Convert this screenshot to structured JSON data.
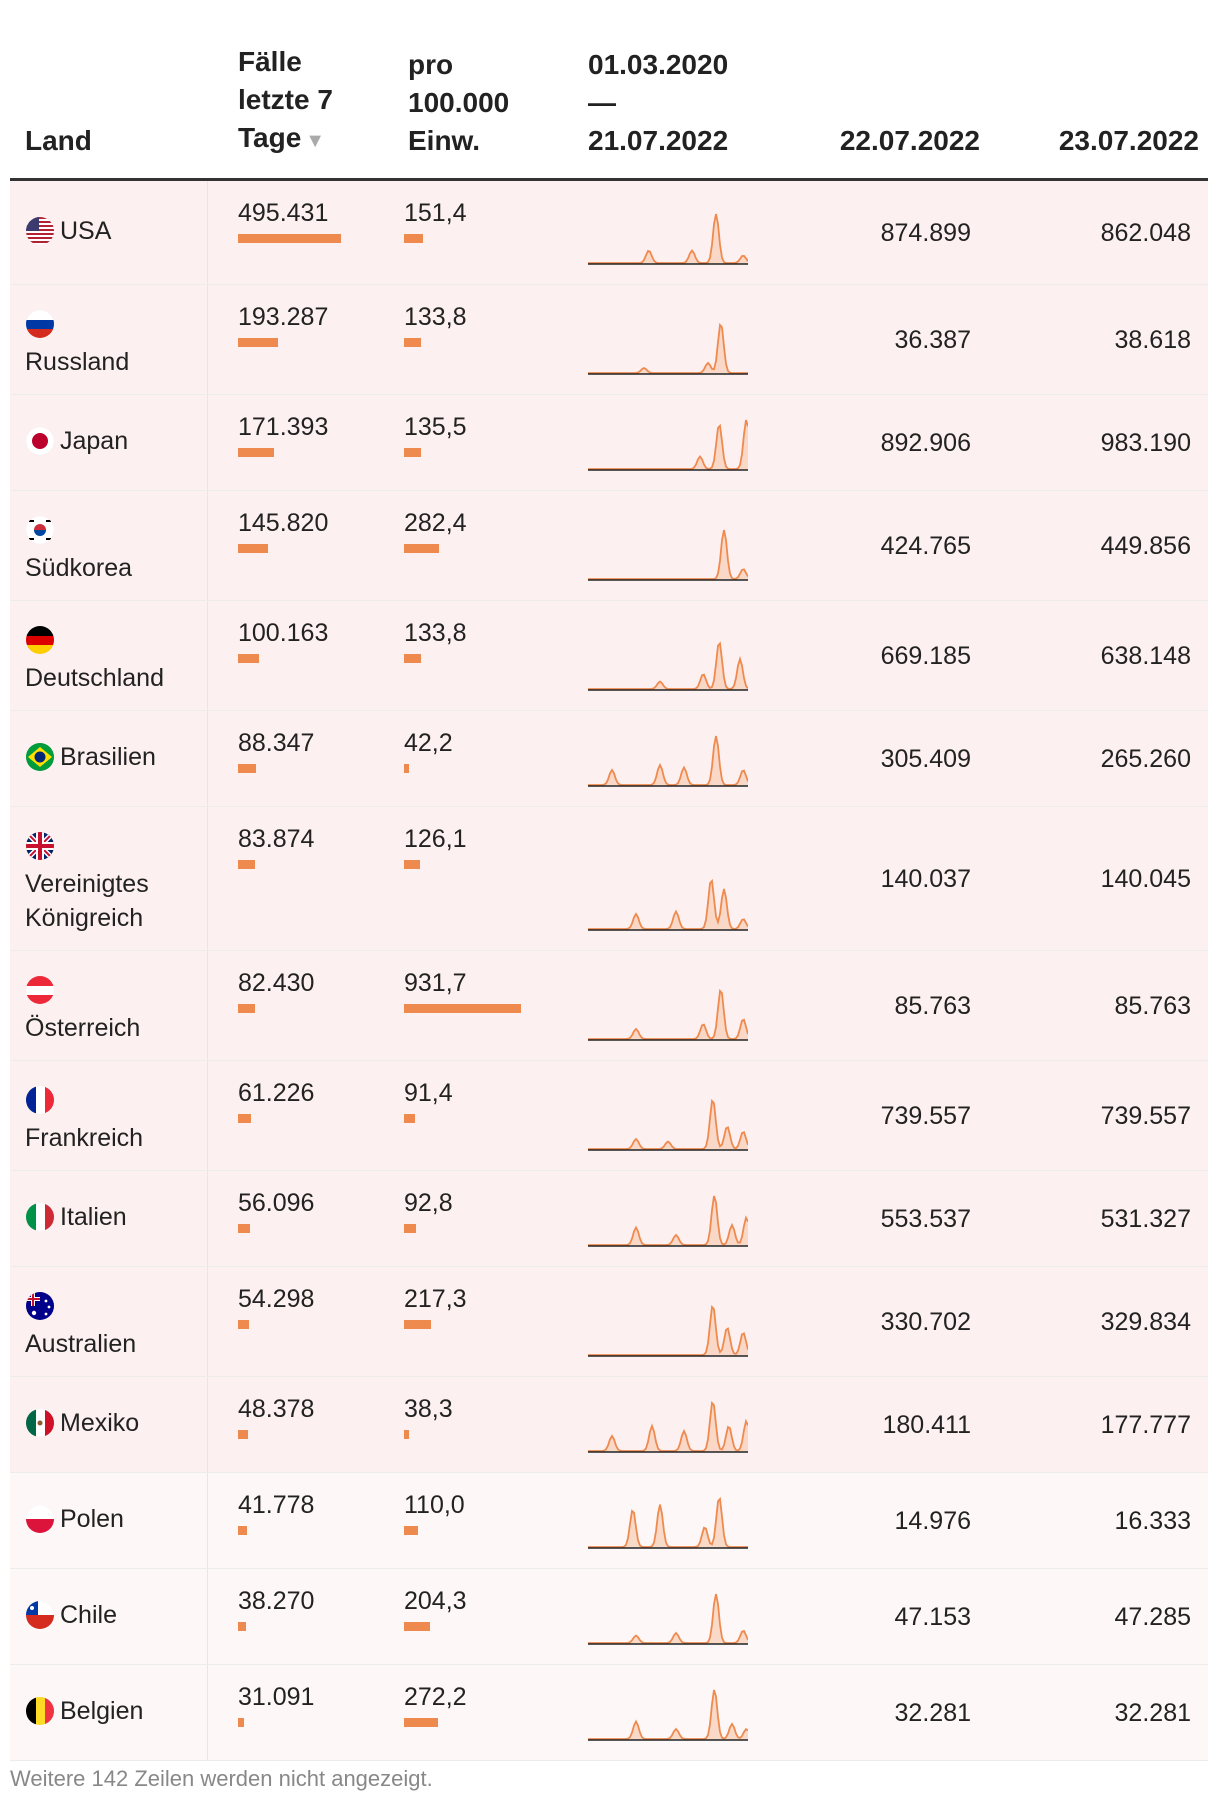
{
  "header": {
    "land": "Land",
    "faelle": [
      "Fälle",
      "letzte 7",
      "Tage"
    ],
    "pro": [
      "pro",
      "100.000",
      "Einw."
    ],
    "range": [
      "01.03.2020",
      "—",
      "21.07.2022"
    ],
    "day1": "22.07.2022",
    "day2": "23.07.2022",
    "sort_icon": "sort-desc-icon"
  },
  "colors": {
    "accent": "#ef8a4f",
    "highlight_row": "#fdf0f0"
  },
  "rows": [
    {
      "land": "USA",
      "faelle": "495.431",
      "pro": "151,4",
      "d1": "874.899",
      "d2": "862.048",
      "faelle_num": 495431,
      "pro_num": 151.4,
      "flag": "us-flag-icon"
    },
    {
      "land": "Russland",
      "faelle": "193.287",
      "pro": "133,8",
      "d1": "36.387",
      "d2": "38.618",
      "faelle_num": 193287,
      "pro_num": 133.8,
      "flag": "ru-flag-icon"
    },
    {
      "land": "Japan",
      "faelle": "171.393",
      "pro": "135,5",
      "d1": "892.906",
      "d2": "983.190",
      "faelle_num": 171393,
      "pro_num": 135.5,
      "flag": "jp-flag-icon"
    },
    {
      "land": "Südkorea",
      "faelle": "145.820",
      "pro": "282,4",
      "d1": "424.765",
      "d2": "449.856",
      "faelle_num": 145820,
      "pro_num": 282.4,
      "flag": "kr-flag-icon"
    },
    {
      "land": "Deutschland",
      "faelle": "100.163",
      "pro": "133,8",
      "d1": "669.185",
      "d2": "638.148",
      "faelle_num": 100163,
      "pro_num": 133.8,
      "flag": "de-flag-icon"
    },
    {
      "land": "Brasilien",
      "faelle": "88.347",
      "pro": "42,2",
      "d1": "305.409",
      "d2": "265.260",
      "faelle_num": 88347,
      "pro_num": 42.2,
      "flag": "br-flag-icon"
    },
    {
      "land": "Vereinigtes Königreich",
      "faelle": "83.874",
      "pro": "126,1",
      "d1": "140.037",
      "d2": "140.045",
      "faelle_num": 83874,
      "pro_num": 126.1,
      "flag": "gb-flag-icon"
    },
    {
      "land": "Österreich",
      "faelle": "82.430",
      "pro": "931,7",
      "d1": "85.763",
      "d2": "85.763",
      "faelle_num": 82430,
      "pro_num": 931.7,
      "flag": "at-flag-icon"
    },
    {
      "land": "Frankreich",
      "faelle": "61.226",
      "pro": "91,4",
      "d1": "739.557",
      "d2": "739.557",
      "faelle_num": 61226,
      "pro_num": 91.4,
      "flag": "fr-flag-icon"
    },
    {
      "land": "Italien",
      "faelle": "56.096",
      "pro": "92,8",
      "d1": "553.537",
      "d2": "531.327",
      "faelle_num": 56096,
      "pro_num": 92.8,
      "flag": "it-flag-icon"
    },
    {
      "land": "Australien",
      "faelle": "54.298",
      "pro": "217,3",
      "d1": "330.702",
      "d2": "329.834",
      "faelle_num": 54298,
      "pro_num": 217.3,
      "flag": "au-flag-icon"
    },
    {
      "land": "Mexiko",
      "faelle": "48.378",
      "pro": "38,3",
      "d1": "180.411",
      "d2": "177.777",
      "faelle_num": 48378,
      "pro_num": 38.3,
      "flag": "mx-flag-icon"
    },
    {
      "land": "Polen",
      "faelle": "41.778",
      "pro": "110,0",
      "d1": "14.976",
      "d2": "16.333",
      "faelle_num": 41778,
      "pro_num": 110.0,
      "flag": "pl-flag-icon"
    },
    {
      "land": "Chile",
      "faelle": "38.270",
      "pro": "204,3",
      "d1": "47.153",
      "d2": "47.285",
      "faelle_num": 38270,
      "pro_num": 204.3,
      "flag": "cl-flag-icon"
    },
    {
      "land": "Belgien",
      "faelle": "31.091",
      "pro": "272,2",
      "d1": "32.281",
      "d2": "32.281",
      "faelle_num": 31091,
      "pro_num": 272.2,
      "flag": "be-flag-icon"
    }
  ],
  "footer": "Weitere 142 Zeilen werden nicht angezeigt."
}
